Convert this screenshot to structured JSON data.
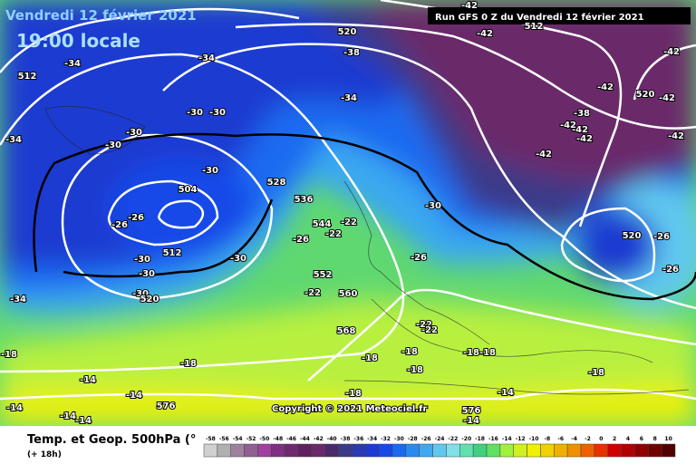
{
  "header": {
    "date": "Vendredi 12 février 2021",
    "time": "19:00 locale",
    "run": "Run GFS 0 Z du Vendredi 12 février 2021"
  },
  "footer": {
    "title": "Temp. et Geop. 500hPa (°",
    "lead": "(+ 18h)",
    "copyright": "Copyright © 2021 Meteociel.fr"
  },
  "contour_labels": [
    "-42",
    "-42",
    "512",
    "520",
    "-38",
    "-34",
    "-34",
    "512",
    "-34",
    "-30",
    "-30",
    "-30",
    "-30",
    "-34",
    "-30",
    "528",
    "504",
    "536",
    "-26",
    "-26",
    "544",
    "-22",
    "-22",
    "-30",
    "-26",
    "512",
    "-30",
    "-30",
    "-30",
    "-26",
    "552",
    "-22",
    "560",
    "-30",
    "520",
    "-34",
    "568",
    "-22",
    "-22",
    "-18",
    "-18",
    "-18",
    "-18",
    "-18",
    "-18",
    "-18",
    "-18",
    "-14",
    "-18",
    "-14",
    "576",
    "-14",
    "576",
    "-14",
    "-14",
    "-14",
    "-14",
    "-42",
    "-42",
    "520",
    "-42",
    "-38",
    "-42",
    "-42",
    "-42",
    "-42",
    "-42",
    "520",
    "-26",
    "-26"
  ],
  "scale": {
    "values": [
      -58,
      -56,
      -54,
      -52,
      -50,
      -48,
      -46,
      -44,
      -42,
      -40,
      -38,
      -36,
      -34,
      -32,
      -30,
      -28,
      -26,
      -24,
      -22,
      -20,
      -18,
      -16,
      -14,
      -12,
      -10,
      -8,
      -6,
      -4,
      -2,
      0,
      2,
      4,
      6,
      8,
      10
    ],
    "colors": [
      "#d0d0d0",
      "#b0b0b0",
      "#a080a0",
      "#906090",
      "#a040a0",
      "#803080",
      "#702870",
      "#602060",
      "#6a2a6a",
      "#4a2a6a",
      "#3a3a8a",
      "#2a3ab0",
      "#1e3ad0",
      "#1848e8",
      "#1a6af0",
      "#2a8af0",
      "#40a8f0",
      "#60c8f0",
      "#80e0e8",
      "#60e0b0",
      "#40d080",
      "#60e060",
      "#a0f040",
      "#d0f020",
      "#f0f000",
      "#f0d000",
      "#f0b000",
      "#f09000",
      "#f06000",
      "#e83000",
      "#d00000",
      "#b00000",
      "#900000",
      "#700000",
      "#500000"
    ]
  }
}
